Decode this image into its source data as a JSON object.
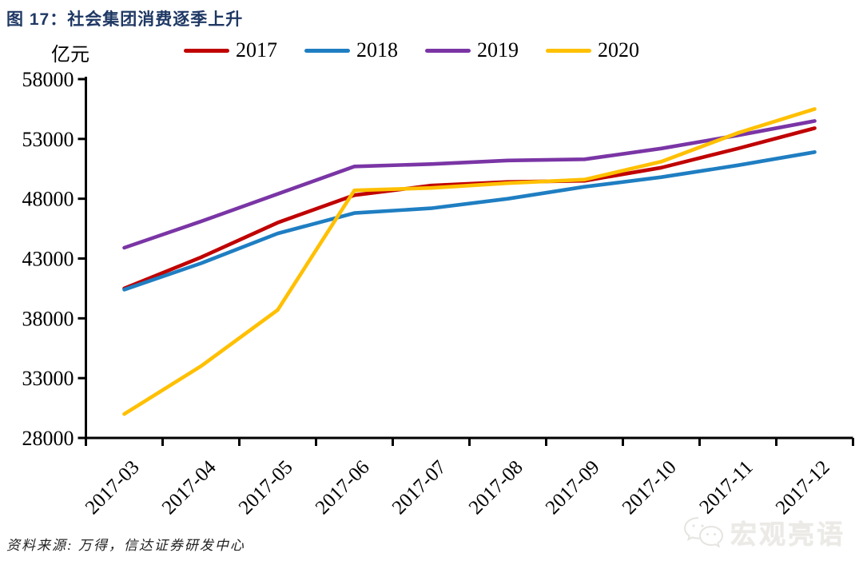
{
  "header": {
    "title": "图 17：社会集团消费逐季上升"
  },
  "chart_data": {
    "type": "line",
    "title": "图 17：社会集团消费逐季上升",
    "unit_label": "亿元",
    "xlabel": "",
    "ylabel": "亿元",
    "categories": [
      "2017-03",
      "2017-04",
      "2017-05",
      "2017-06",
      "2017-07",
      "2017-08",
      "2017-09",
      "2017-10",
      "2017-11",
      "2017-12"
    ],
    "series": [
      {
        "name": "2017",
        "color": "#C00000",
        "values": [
          40500,
          43100,
          46000,
          48300,
          49100,
          49400,
          49500,
          50600,
          52200,
          53900
        ]
      },
      {
        "name": "2018",
        "color": "#1F7EC2",
        "values": [
          40400,
          42600,
          45100,
          46800,
          47200,
          48000,
          49000,
          49800,
          50800,
          51900
        ]
      },
      {
        "name": "2019",
        "color": "#7A35A5",
        "values": [
          43900,
          46100,
          48400,
          50700,
          50900,
          51200,
          51300,
          52200,
          53300,
          54500
        ]
      },
      {
        "name": "2020",
        "color": "#FFC000",
        "values": [
          30000,
          34000,
          38700,
          48700,
          48900,
          49300,
          49600,
          51100,
          53500,
          55500
        ]
      }
    ],
    "ylim": [
      28000,
      58000
    ],
    "yticks": [
      28000,
      33000,
      38000,
      43000,
      48000,
      53000,
      58000
    ],
    "grid": false,
    "legend_position": "top"
  },
  "footer": {
    "source": "资料来源: 万得，信达证券研发中心",
    "watermark": "宏观亮语",
    "watermark_icon": "wechat-icon"
  },
  "colors": {
    "title": "#1F3864",
    "axis": "#000000",
    "watermark": "#ECEAE6"
  }
}
